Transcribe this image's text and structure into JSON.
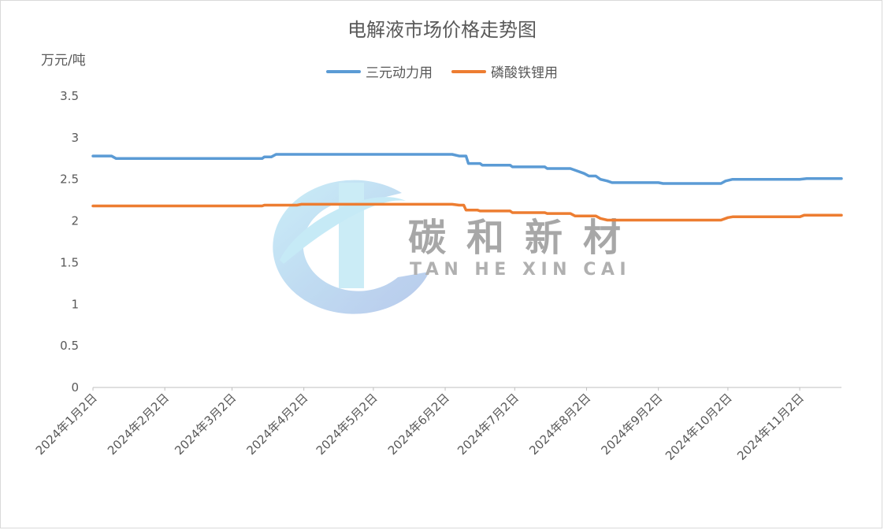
{
  "chart_data": {
    "type": "line",
    "title": "电解液市场价格走势图",
    "ylabel": "万元/吨",
    "xlabel": "",
    "ylim": [
      0,
      3.5
    ],
    "yticks": [
      "0",
      "0.5",
      "1",
      "1.5",
      "2",
      "2.5",
      "3",
      "3.5"
    ],
    "xlim": [
      "2024-01-02",
      "2024-11-20"
    ],
    "xticks": [
      {
        "date": "2024-01-02",
        "label": "2024年1月2日"
      },
      {
        "date": "2024-02-02",
        "label": "2024年2月2日"
      },
      {
        "date": "2024-03-02",
        "label": "2024年3月2日"
      },
      {
        "date": "2024-04-02",
        "label": "2024年4月2日"
      },
      {
        "date": "2024-05-02",
        "label": "2024年5月2日"
      },
      {
        "date": "2024-06-02",
        "label": "2024年6月2日"
      },
      {
        "date": "2024-07-02",
        "label": "2024年7月2日"
      },
      {
        "date": "2024-08-02",
        "label": "2024年8月2日"
      },
      {
        "date": "2024-09-02",
        "label": "2024年9月2日"
      },
      {
        "date": "2024-10-02",
        "label": "2024年10月2日"
      },
      {
        "date": "2024-11-02",
        "label": "2024年11月2日"
      }
    ],
    "grid": false,
    "legend": "top",
    "series": [
      {
        "name": "三元动力用",
        "color": "#5b9bd5",
        "points": [
          [
            "2024-01-02",
            2.78
          ],
          [
            "2024-01-10",
            2.78
          ],
          [
            "2024-01-12",
            2.75
          ],
          [
            "2024-03-15",
            2.75
          ],
          [
            "2024-03-16",
            2.77
          ],
          [
            "2024-03-19",
            2.77
          ],
          [
            "2024-03-21",
            2.8
          ],
          [
            "2024-06-05",
            2.8
          ],
          [
            "2024-06-08",
            2.78
          ],
          [
            "2024-06-11",
            2.78
          ],
          [
            "2024-06-12",
            2.69
          ],
          [
            "2024-06-17",
            2.69
          ],
          [
            "2024-06-18",
            2.67
          ],
          [
            "2024-06-30",
            2.67
          ],
          [
            "2024-07-01",
            2.65
          ],
          [
            "2024-07-15",
            2.65
          ],
          [
            "2024-07-16",
            2.63
          ],
          [
            "2024-07-26",
            2.63
          ],
          [
            "2024-07-29",
            2.6
          ],
          [
            "2024-08-01",
            2.57
          ],
          [
            "2024-08-03",
            2.54
          ],
          [
            "2024-08-06",
            2.54
          ],
          [
            "2024-08-08",
            2.5
          ],
          [
            "2024-08-11",
            2.48
          ],
          [
            "2024-08-13",
            2.46
          ],
          [
            "2024-09-02",
            2.46
          ],
          [
            "2024-09-04",
            2.45
          ],
          [
            "2024-09-29",
            2.45
          ],
          [
            "2024-10-01",
            2.48
          ],
          [
            "2024-10-04",
            2.5
          ],
          [
            "2024-11-02",
            2.5
          ],
          [
            "2024-11-05",
            2.51
          ],
          [
            "2024-11-20",
            2.51
          ]
        ]
      },
      {
        "name": "磷酸铁锂用",
        "color": "#ed7d31",
        "points": [
          [
            "2024-01-02",
            2.18
          ],
          [
            "2024-03-15",
            2.18
          ],
          [
            "2024-03-16",
            2.19
          ],
          [
            "2024-03-30",
            2.19
          ],
          [
            "2024-04-01",
            2.2
          ],
          [
            "2024-06-05",
            2.2
          ],
          [
            "2024-06-08",
            2.19
          ],
          [
            "2024-06-10",
            2.19
          ],
          [
            "2024-06-11",
            2.13
          ],
          [
            "2024-06-16",
            2.13
          ],
          [
            "2024-06-17",
            2.12
          ],
          [
            "2024-06-30",
            2.12
          ],
          [
            "2024-07-01",
            2.1
          ],
          [
            "2024-07-15",
            2.1
          ],
          [
            "2024-07-16",
            2.09
          ],
          [
            "2024-07-26",
            2.09
          ],
          [
            "2024-07-28",
            2.06
          ],
          [
            "2024-08-06",
            2.06
          ],
          [
            "2024-08-08",
            2.03
          ],
          [
            "2024-08-11",
            2.01
          ],
          [
            "2024-09-29",
            2.01
          ],
          [
            "2024-10-02",
            2.04
          ],
          [
            "2024-10-04",
            2.05
          ],
          [
            "2024-11-02",
            2.05
          ],
          [
            "2024-11-04",
            2.07
          ],
          [
            "2024-11-20",
            2.07
          ]
        ]
      }
    ]
  },
  "watermark": {
    "text_cn": "碳和新材",
    "text_en": "TAN HE XIN CAI",
    "colors": {
      "logo_light": "#bfe6f5",
      "logo_dark": "#b3c6ea",
      "text_cn": "#9e9e9e",
      "text_en": "#a8a8a8"
    }
  },
  "colors": {
    "axis": "#bfbfbf",
    "text": "#595959"
  }
}
